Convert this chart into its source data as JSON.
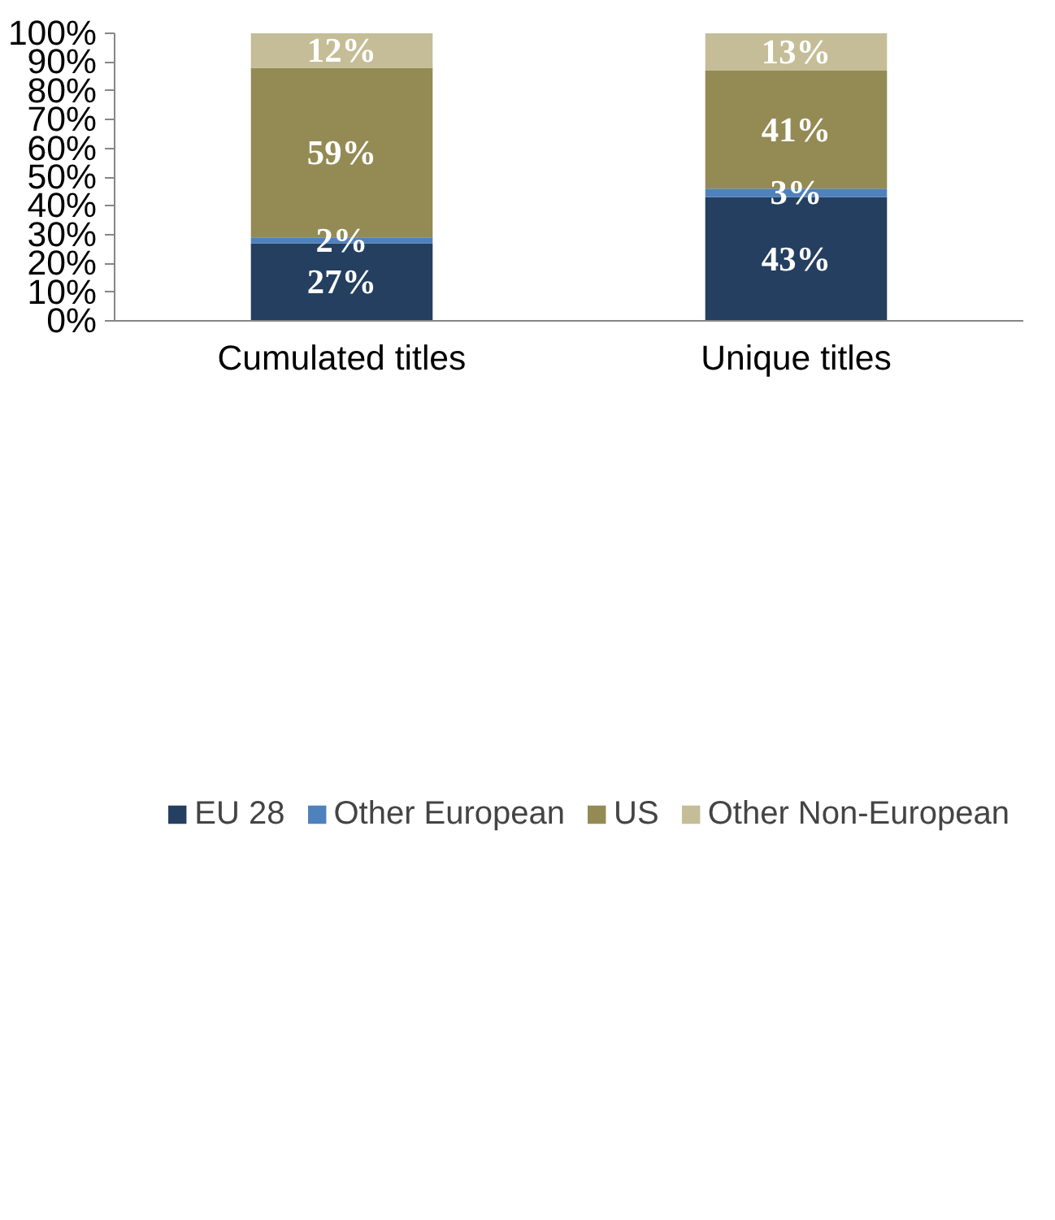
{
  "chart_data": {
    "type": "bar",
    "stacked": true,
    "categories": [
      "Cumulated titles",
      "Unique titles"
    ],
    "series": [
      {
        "name": "EU 28",
        "color": "#243f60",
        "values": [
          27,
          43
        ],
        "value_labels": [
          "27%",
          "43%"
        ]
      },
      {
        "name": "Other European",
        "color": "#4f81bd",
        "values": [
          2,
          3
        ],
        "value_labels": [
          "2%",
          "3%"
        ]
      },
      {
        "name": "US",
        "color": "#948a54",
        "values": [
          59,
          41
        ],
        "value_labels": [
          "59%",
          "41%"
        ]
      },
      {
        "name": "Other Non-European",
        "color": "#c4bd97",
        "values": [
          12,
          13
        ],
        "value_labels": [
          "12%",
          "13%"
        ]
      }
    ],
    "ylim": [
      0,
      100
    ],
    "yticks": [
      {
        "value": 0,
        "label": "0%"
      },
      {
        "value": 10,
        "label": "10%"
      },
      {
        "value": 20,
        "label": "20%"
      },
      {
        "value": 30,
        "label": "30%"
      },
      {
        "value": 40,
        "label": "40%"
      },
      {
        "value": 50,
        "label": "50%"
      },
      {
        "value": 60,
        "label": "60%"
      },
      {
        "value": 70,
        "label": "70%"
      },
      {
        "value": 80,
        "label": "80%"
      },
      {
        "value": 90,
        "label": "90%"
      },
      {
        "value": 100,
        "label": "100%"
      }
    ],
    "grid": false,
    "legend": "bottom"
  }
}
